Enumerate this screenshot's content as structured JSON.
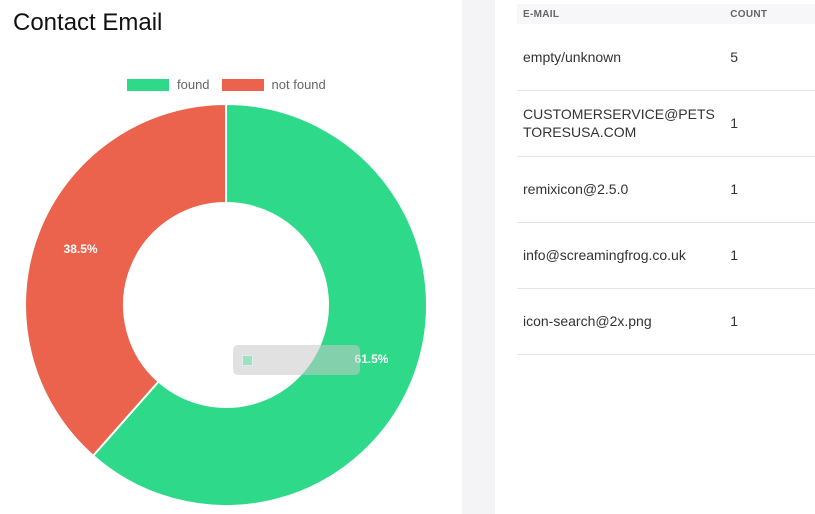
{
  "panel": {
    "title": "Contact Email"
  },
  "chart_data": {
    "type": "pie",
    "categories": [
      "found",
      "not found"
    ],
    "values": [
      61.5,
      38.5
    ],
    "data_labels": [
      "61.5%",
      "38.5%"
    ],
    "colors": [
      "#2ed98a",
      "#eb634d"
    ],
    "legend": "top",
    "tooltip_text": "61.5%"
  },
  "table": {
    "headers": {
      "email": "E-MAIL",
      "count": "COUNT"
    },
    "rows": [
      {
        "email": "empty/unknown",
        "count": "5"
      },
      {
        "email": "CUSTOMERSERVICE@PETSTORESUSA.COM",
        "count": "1"
      },
      {
        "email": "remixicon@2.5.0",
        "count": "1"
      },
      {
        "email": "info@screamingfrog.co.uk",
        "count": "1"
      },
      {
        "email": "icon-search@2x.png",
        "count": "1"
      }
    ]
  }
}
